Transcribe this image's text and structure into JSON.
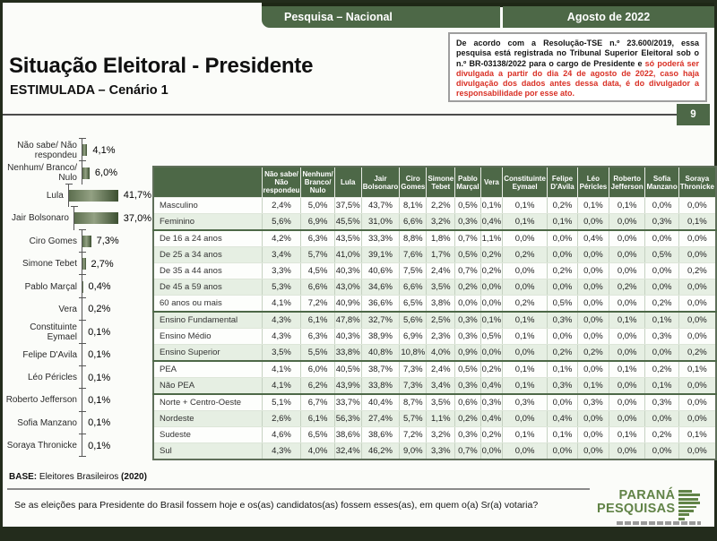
{
  "header": {
    "tab_left": "Pesquisa – Nacional",
    "tab_right": "Agosto de 2022",
    "page_number": "9"
  },
  "title": {
    "main": "Situação Eleitoral - Presidente",
    "subtitle": "ESTIMULADA – Cenário 1"
  },
  "disclaimer": {
    "text_black": "De acordo com a Resolução-TSE n.º 23.600/2019, essa pesquisa está registrada no Tribunal Superior Eleitoral sob o n.º BR-03138/2022 para o cargo de Presidente e ",
    "text_red": "só poderá ser divulgada a partir do dia 24 de agosto de 2022, caso haja divulgação dos dados antes dessa data, é do divulgador a responsabilidade por esse ato."
  },
  "colors": {
    "accent_green": "#4d6847",
    "light_row_green": "#e6efe3",
    "alert_red": "#d93025",
    "logo_green": "#618347"
  },
  "chart_data": [
    {
      "type": "bar",
      "orientation": "horizontal",
      "title": "Situação Eleitoral - Presidente — ESTIMULADA – Cenário 1",
      "unit": "%",
      "xlim": [
        0,
        45
      ],
      "categories": [
        "Não sabe/ Não respondeu",
        "Nenhum/ Branco/ Nulo",
        "Lula",
        "Jair Bolsonaro",
        "Ciro Gomes",
        "Simone Tebet",
        "Pablo Marçal",
        "Vera",
        "Constituinte Eymael",
        "Felipe D'Avila",
        "Léo Péricles",
        "Roberto Jefferson",
        "Sofia Manzano",
        "Soraya Thronicke"
      ],
      "values": [
        4.1,
        6.0,
        41.7,
        37.0,
        7.3,
        2.7,
        0.4,
        0.2,
        0.1,
        0.1,
        0.1,
        0.1,
        0.1,
        0.1
      ],
      "value_labels": [
        "4,1%",
        "6,0%",
        "41,7%",
        "37,0%",
        "7,3%",
        "2,7%",
        "0,4%",
        "0,2%",
        "0,1%",
        "0,1%",
        "0,1%",
        "0,1%",
        "0,1%",
        "0,1%"
      ]
    },
    {
      "type": "table",
      "columns": [
        "Não sabe/ Não respondeu",
        "Nenhum/ Branco/ Nulo",
        "Lula",
        "Jair Bolsonaro",
        "Ciro Gomes",
        "Simone Tebet",
        "Pablo Marçal",
        "Vera",
        "Constituinte Eymael",
        "Felipe D'Avila",
        "Léo Péricles",
        "Roberto Jefferson",
        "Sofia Manzano",
        "Soraya Thronicke"
      ],
      "groups": [
        [
          {
            "label": "Masculino",
            "values": [
              "2,4%",
              "5,0%",
              "37,5%",
              "43,7%",
              "8,1%",
              "2,2%",
              "0,5%",
              "0,1%",
              "0,1%",
              "0,2%",
              "0,1%",
              "0,1%",
              "0,0%",
              "0,0%"
            ]
          },
          {
            "label": "Feminino",
            "values": [
              "5,6%",
              "6,9%",
              "45,5%",
              "31,0%",
              "6,6%",
              "3,2%",
              "0,3%",
              "0,4%",
              "0,1%",
              "0,1%",
              "0,0%",
              "0,0%",
              "0,3%",
              "0,1%"
            ]
          }
        ],
        [
          {
            "label": "De 16 a 24 anos",
            "values": [
              "4,2%",
              "6,3%",
              "43,5%",
              "33,3%",
              "8,8%",
              "1,8%",
              "0,7%",
              "1,1%",
              "0,0%",
              "0,0%",
              "0,4%",
              "0,0%",
              "0,0%",
              "0,0%"
            ]
          },
          {
            "label": "De 25 a 34 anos",
            "values": [
              "3,4%",
              "5,7%",
              "41,0%",
              "39,1%",
              "7,6%",
              "1,7%",
              "0,5%",
              "0,2%",
              "0,2%",
              "0,0%",
              "0,0%",
              "0,0%",
              "0,5%",
              "0,0%"
            ]
          },
          {
            "label": "De 35 a 44 anos",
            "values": [
              "3,3%",
              "4,5%",
              "40,3%",
              "40,6%",
              "7,5%",
              "2,4%",
              "0,7%",
              "0,2%",
              "0,0%",
              "0,2%",
              "0,0%",
              "0,0%",
              "0,0%",
              "0,2%"
            ]
          },
          {
            "label": "De 45 a 59 anos",
            "values": [
              "5,3%",
              "6,6%",
              "43,0%",
              "34,6%",
              "6,6%",
              "3,5%",
              "0,2%",
              "0,0%",
              "0,0%",
              "0,0%",
              "0,0%",
              "0,2%",
              "0,0%",
              "0,0%"
            ]
          },
          {
            "label": "60 anos ou mais",
            "values": [
              "4,1%",
              "7,2%",
              "40,9%",
              "36,6%",
              "6,5%",
              "3,8%",
              "0,0%",
              "0,0%",
              "0,2%",
              "0,5%",
              "0,0%",
              "0,0%",
              "0,2%",
              "0,0%"
            ]
          }
        ],
        [
          {
            "label": "Ensino Fundamental",
            "values": [
              "4,3%",
              "6,1%",
              "47,8%",
              "32,7%",
              "5,6%",
              "2,5%",
              "0,3%",
              "0,1%",
              "0,1%",
              "0,3%",
              "0,0%",
              "0,1%",
              "0,1%",
              "0,0%"
            ]
          },
          {
            "label": "Ensino Médio",
            "values": [
              "4,3%",
              "6,3%",
              "40,3%",
              "38,9%",
              "6,9%",
              "2,3%",
              "0,3%",
              "0,5%",
              "0,1%",
              "0,0%",
              "0,0%",
              "0,0%",
              "0,3%",
              "0,0%"
            ]
          },
          {
            "label": "Ensino Superior",
            "values": [
              "3,5%",
              "5,5%",
              "33,8%",
              "40,8%",
              "10,8%",
              "4,0%",
              "0,9%",
              "0,0%",
              "0,0%",
              "0,2%",
              "0,2%",
              "0,0%",
              "0,0%",
              "0,2%"
            ]
          }
        ],
        [
          {
            "label": "PEA",
            "values": [
              "4,1%",
              "6,0%",
              "40,5%",
              "38,7%",
              "7,3%",
              "2,4%",
              "0,5%",
              "0,2%",
              "0,1%",
              "0,1%",
              "0,0%",
              "0,1%",
              "0,2%",
              "0,1%"
            ]
          },
          {
            "label": "Não PEA",
            "values": [
              "4,1%",
              "6,2%",
              "43,9%",
              "33,8%",
              "7,3%",
              "3,4%",
              "0,3%",
              "0,4%",
              "0,1%",
              "0,3%",
              "0,1%",
              "0,0%",
              "0,1%",
              "0,0%"
            ]
          }
        ],
        [
          {
            "label": "Norte + Centro-Oeste",
            "values": [
              "5,1%",
              "6,7%",
              "33,7%",
              "40,4%",
              "8,7%",
              "3,5%",
              "0,6%",
              "0,3%",
              "0,3%",
              "0,0%",
              "0,3%",
              "0,0%",
              "0,3%",
              "0,0%"
            ]
          },
          {
            "label": "Nordeste",
            "values": [
              "2,6%",
              "6,1%",
              "56,3%",
              "27,4%",
              "5,7%",
              "1,1%",
              "0,2%",
              "0,4%",
              "0,0%",
              "0,4%",
              "0,0%",
              "0,0%",
              "0,0%",
              "0,0%"
            ]
          },
          {
            "label": "Sudeste",
            "values": [
              "4,6%",
              "6,5%",
              "38,6%",
              "38,6%",
              "7,2%",
              "3,2%",
              "0,3%",
              "0,2%",
              "0,1%",
              "0,1%",
              "0,0%",
              "0,1%",
              "0,2%",
              "0,1%"
            ]
          },
          {
            "label": "Sul",
            "values": [
              "4,3%",
              "4,0%",
              "32,4%",
              "46,2%",
              "9,0%",
              "3,3%",
              "0,7%",
              "0,0%",
              "0,0%",
              "0,0%",
              "0,0%",
              "0,0%",
              "0,0%",
              "0,0%"
            ]
          }
        ]
      ]
    }
  ],
  "footer": {
    "base_label": "BASE:",
    "base_text": " Eleitores Brasileiros ",
    "base_year": "(2020)",
    "question": "Se as eleições para Presidente do Brasil fossem hoje e os(as) candidatos(as) fossem esses(as), em quem o(a) Sr(a) votaria?",
    "logo_line1": "PARANÁ",
    "logo_line2": "PESQUISAS"
  }
}
